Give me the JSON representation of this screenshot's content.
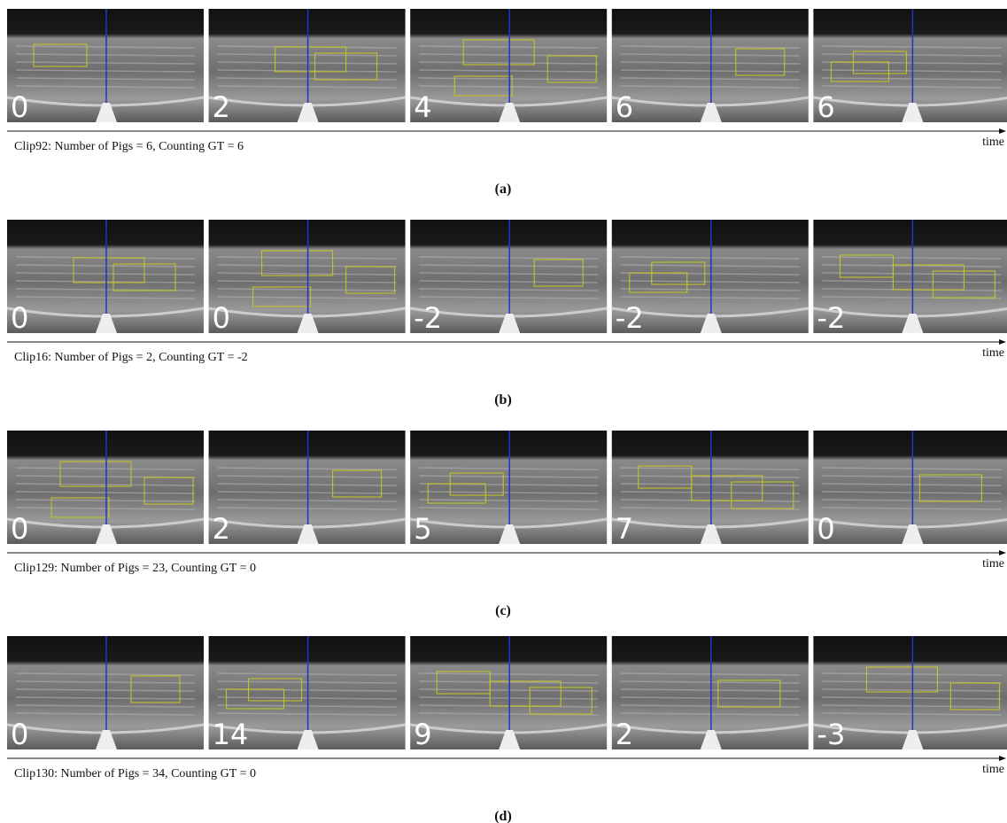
{
  "panels": [
    {
      "frames": [
        "0",
        "2",
        "4",
        "6",
        "6"
      ],
      "caption": "Clip92: Number of Pigs = 6, Counting GT = 6",
      "time": "time",
      "label": "(a)"
    },
    {
      "frames": [
        "0",
        "0",
        "-2",
        "-2",
        "-2"
      ],
      "caption": "Clip16: Number of Pigs = 2, Counting GT = -2",
      "time": "time",
      "label": "(b)"
    },
    {
      "frames": [
        "0",
        "2",
        "5",
        "7",
        "0"
      ],
      "caption": "Clip129: Number of Pigs = 23, Counting GT = 0",
      "time": "time",
      "label": "(c)"
    },
    {
      "frames": [
        "0",
        "14",
        "9",
        "2",
        "-3"
      ],
      "caption": "Clip130: Number of Pigs = 34, Counting GT = 0",
      "time": "time",
      "label": "(d)"
    }
  ]
}
